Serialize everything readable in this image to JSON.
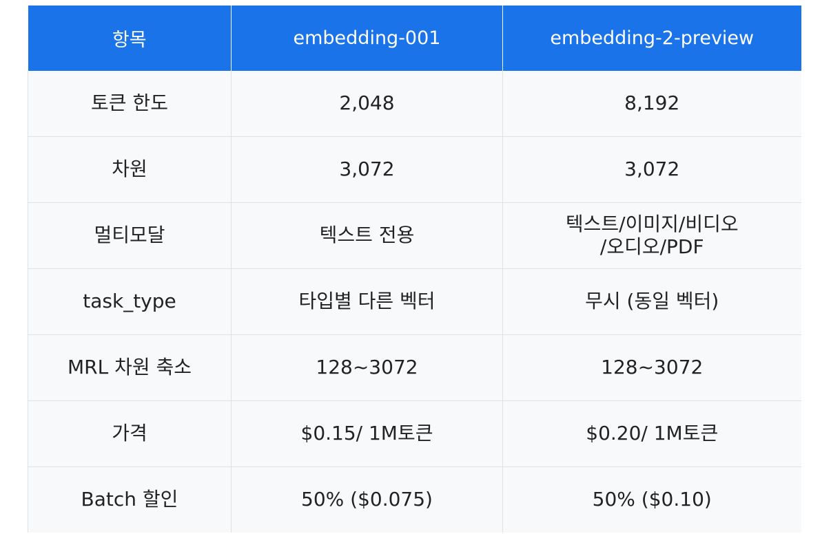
{
  "table": {
    "headers": [
      "항목",
      "embedding-001",
      "embedding-2-preview"
    ],
    "rows": [
      {
        "item": "토큰 한도",
        "v1": "2,048",
        "v2": "8,192"
      },
      {
        "item": "차원",
        "v1": "3,072",
        "v2": "3,072"
      },
      {
        "item": "멀티모달",
        "v1": "텍스트 전용",
        "v2_line1": "텍스트/이미지/비디오",
        "v2_line2": "/오디오/PDF"
      },
      {
        "item": "task_type",
        "v1": "타입별 다른 벡터",
        "v2": "무시 (동일 벡터)"
      },
      {
        "item": "MRL 차원 축소",
        "v1": "128~3072",
        "v2": "128~3072"
      },
      {
        "item": "가격",
        "v1": "$0.15/ 1M토큰",
        "v2": "$0.20/ 1M토큰"
      },
      {
        "item": "Batch 할인",
        "v1": "50% ($0.075)",
        "v2": "50% ($0.10)"
      }
    ]
  },
  "colors": {
    "header_bg": "#1a73e8",
    "header_text": "#ffffff",
    "cell_bg": "#f8f9fa",
    "grid": "#dde1e6"
  }
}
